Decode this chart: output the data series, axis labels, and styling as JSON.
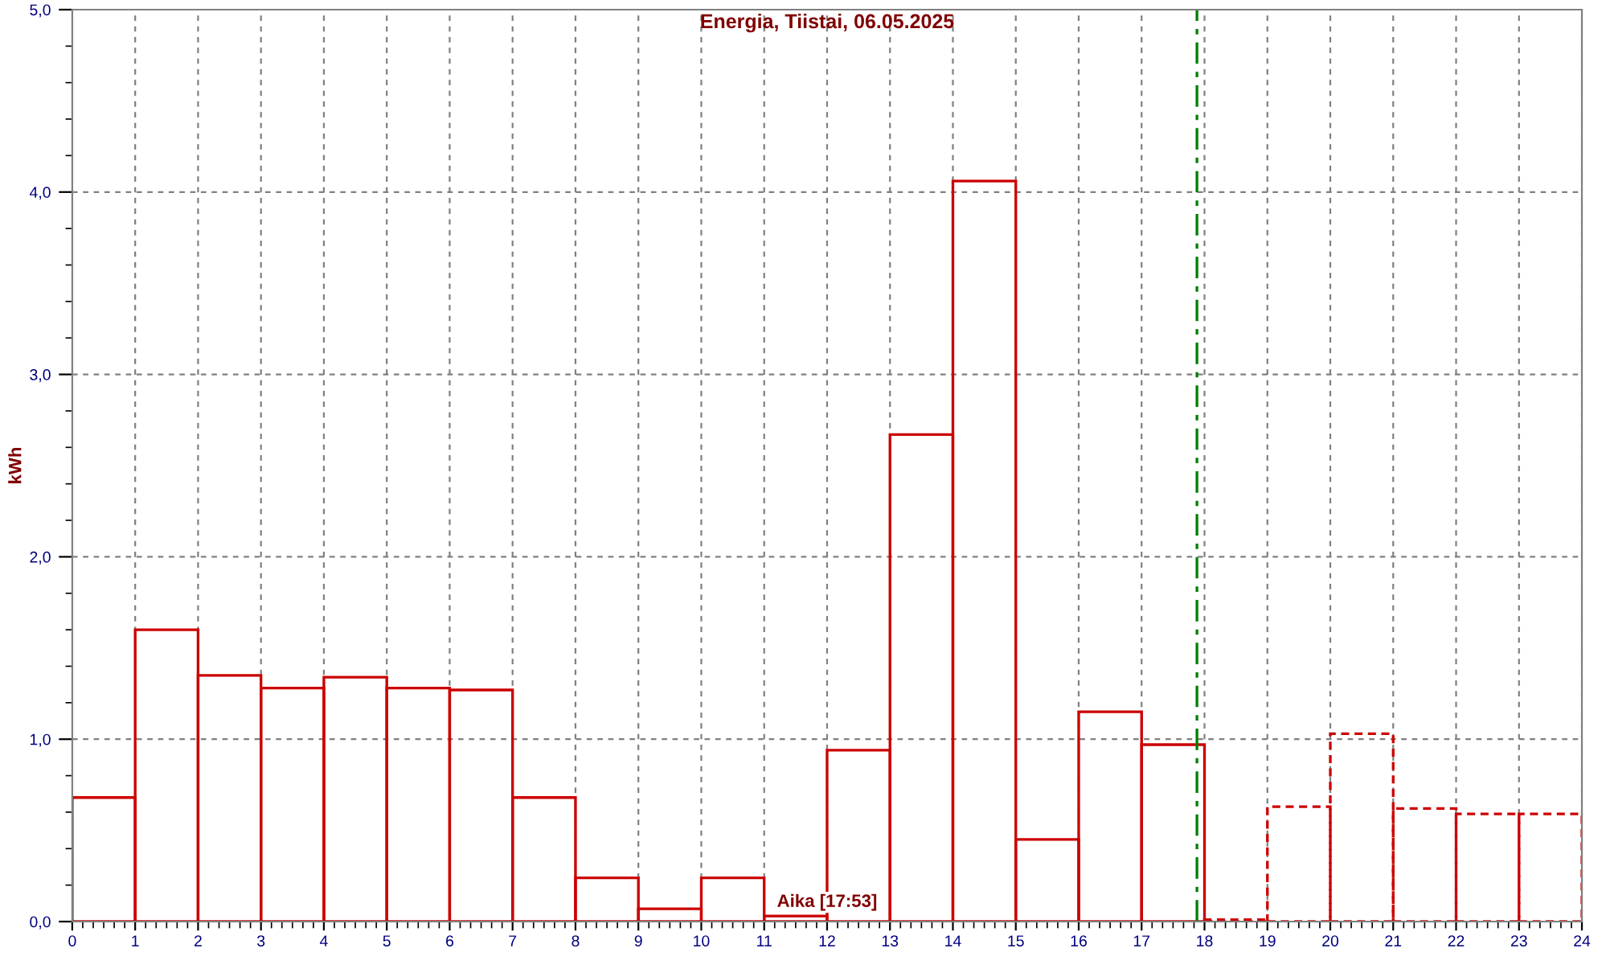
{
  "chart_data": {
    "type": "histogram",
    "title": "Energia, Tiistai, 06.05.2025",
    "xlabel": "Aika [17:53]",
    "ylabel": "kWh",
    "bins": [
      0,
      1,
      2,
      3,
      4,
      5,
      6,
      7,
      8,
      9,
      10,
      11,
      12,
      13,
      14,
      15,
      16,
      17,
      18,
      19,
      20,
      21,
      22,
      23,
      24
    ],
    "series": [
      {
        "color": "#cc0000",
        "line_style": "solid",
        "values": [
          0.68,
          1.6,
          1.35,
          1.28,
          1.34,
          1.28,
          1.27,
          0.68,
          0.24,
          0.07,
          0.24,
          0.03,
          0.94,
          2.67,
          4.06,
          0.45,
          1.15,
          0.97,
          null,
          null,
          null,
          null,
          null,
          null
        ]
      },
      {
        "color": "#cc0000",
        "line_style": "dashed",
        "values": [
          null,
          null,
          null,
          null,
          null,
          null,
          null,
          null,
          null,
          null,
          null,
          null,
          null,
          null,
          null,
          null,
          null,
          null,
          0.01,
          0.63,
          1.03,
          0.62,
          0.59,
          0.59
        ]
      }
    ],
    "xlim": [
      0,
      24
    ],
    "xticks": [
      0,
      1,
      2,
      3,
      4,
      5,
      6,
      7,
      8,
      9,
      10,
      11,
      12,
      13,
      14,
      15,
      16,
      17,
      18,
      19,
      20,
      21,
      22,
      23,
      24
    ],
    "ylim": [
      0,
      5
    ],
    "yticks": [
      {
        "value": 0,
        "label": "0,0"
      },
      {
        "value": 1,
        "label": "1,0"
      },
      {
        "value": 2,
        "label": "2,0"
      },
      {
        "value": 3,
        "label": "3,0"
      },
      {
        "value": 4,
        "label": "4,0"
      },
      {
        "value": 5,
        "label": "5,0"
      }
    ],
    "ref_lines": [
      {
        "axis": "x",
        "value": 17.88,
        "label": null,
        "color": "#008000",
        "line_style": "dashdot"
      }
    ],
    "grid": true,
    "legend": false
  }
}
